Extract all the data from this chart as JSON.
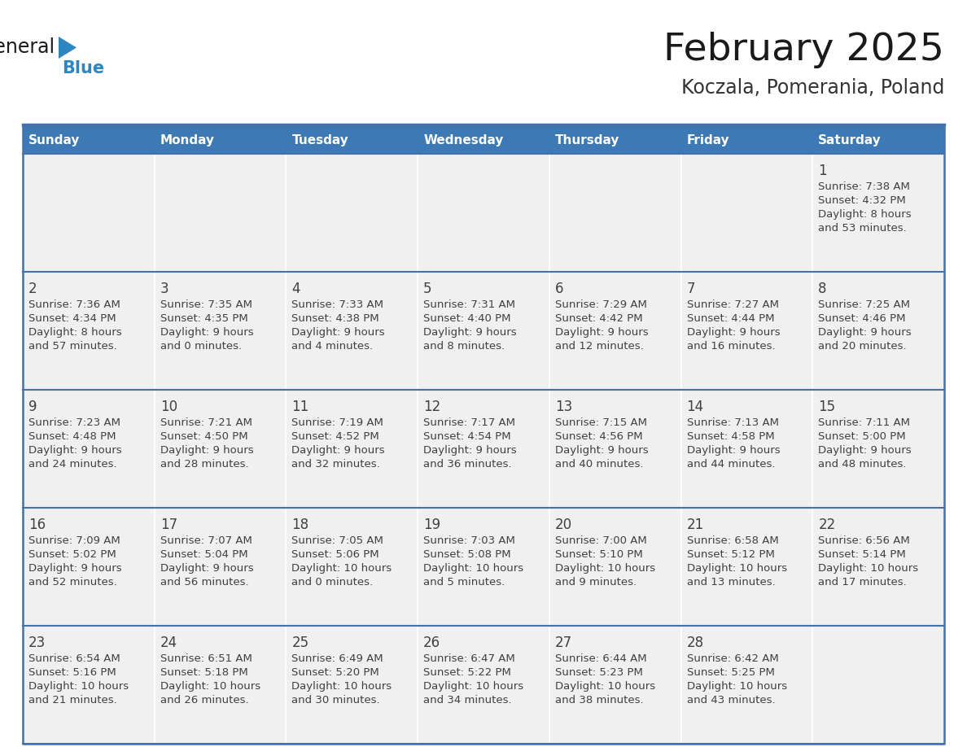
{
  "title": "February 2025",
  "subtitle": "Koczala, Pomerania, Poland",
  "header_bg": "#3D7AB5",
  "header_text": "#FFFFFF",
  "day_names": [
    "Sunday",
    "Monday",
    "Tuesday",
    "Wednesday",
    "Thursday",
    "Friday",
    "Saturday"
  ],
  "row_bg": "#F0F0F0",
  "border_color": "#4472A8",
  "text_color": "#404040",
  "title_color": "#1a1a1a",
  "subtitle_color": "#333333",
  "logo_color_general": "#1a1a1a",
  "logo_color_blue": "#2E86C1",
  "logo_triangle_color": "#2E86C1",
  "days": [
    {
      "day": 1,
      "col": 6,
      "row": 0,
      "sunrise": "7:38 AM",
      "sunset": "4:32 PM",
      "daylight": "8 hours",
      "daylight2": "and 53 minutes."
    },
    {
      "day": 2,
      "col": 0,
      "row": 1,
      "sunrise": "7:36 AM",
      "sunset": "4:34 PM",
      "daylight": "8 hours",
      "daylight2": "and 57 minutes."
    },
    {
      "day": 3,
      "col": 1,
      "row": 1,
      "sunrise": "7:35 AM",
      "sunset": "4:35 PM",
      "daylight": "9 hours",
      "daylight2": "and 0 minutes."
    },
    {
      "day": 4,
      "col": 2,
      "row": 1,
      "sunrise": "7:33 AM",
      "sunset": "4:38 PM",
      "daylight": "9 hours",
      "daylight2": "and 4 minutes."
    },
    {
      "day": 5,
      "col": 3,
      "row": 1,
      "sunrise": "7:31 AM",
      "sunset": "4:40 PM",
      "daylight": "9 hours",
      "daylight2": "and 8 minutes."
    },
    {
      "day": 6,
      "col": 4,
      "row": 1,
      "sunrise": "7:29 AM",
      "sunset": "4:42 PM",
      "daylight": "9 hours",
      "daylight2": "and 12 minutes."
    },
    {
      "day": 7,
      "col": 5,
      "row": 1,
      "sunrise": "7:27 AM",
      "sunset": "4:44 PM",
      "daylight": "9 hours",
      "daylight2": "and 16 minutes."
    },
    {
      "day": 8,
      "col": 6,
      "row": 1,
      "sunrise": "7:25 AM",
      "sunset": "4:46 PM",
      "daylight": "9 hours",
      "daylight2": "and 20 minutes."
    },
    {
      "day": 9,
      "col": 0,
      "row": 2,
      "sunrise": "7:23 AM",
      "sunset": "4:48 PM",
      "daylight": "9 hours",
      "daylight2": "and 24 minutes."
    },
    {
      "day": 10,
      "col": 1,
      "row": 2,
      "sunrise": "7:21 AM",
      "sunset": "4:50 PM",
      "daylight": "9 hours",
      "daylight2": "and 28 minutes."
    },
    {
      "day": 11,
      "col": 2,
      "row": 2,
      "sunrise": "7:19 AM",
      "sunset": "4:52 PM",
      "daylight": "9 hours",
      "daylight2": "and 32 minutes."
    },
    {
      "day": 12,
      "col": 3,
      "row": 2,
      "sunrise": "7:17 AM",
      "sunset": "4:54 PM",
      "daylight": "9 hours",
      "daylight2": "and 36 minutes."
    },
    {
      "day": 13,
      "col": 4,
      "row": 2,
      "sunrise": "7:15 AM",
      "sunset": "4:56 PM",
      "daylight": "9 hours",
      "daylight2": "and 40 minutes."
    },
    {
      "day": 14,
      "col": 5,
      "row": 2,
      "sunrise": "7:13 AM",
      "sunset": "4:58 PM",
      "daylight": "9 hours",
      "daylight2": "and 44 minutes."
    },
    {
      "day": 15,
      "col": 6,
      "row": 2,
      "sunrise": "7:11 AM",
      "sunset": "5:00 PM",
      "daylight": "9 hours",
      "daylight2": "and 48 minutes."
    },
    {
      "day": 16,
      "col": 0,
      "row": 3,
      "sunrise": "7:09 AM",
      "sunset": "5:02 PM",
      "daylight": "9 hours",
      "daylight2": "and 52 minutes."
    },
    {
      "day": 17,
      "col": 1,
      "row": 3,
      "sunrise": "7:07 AM",
      "sunset": "5:04 PM",
      "daylight": "9 hours",
      "daylight2": "and 56 minutes."
    },
    {
      "day": 18,
      "col": 2,
      "row": 3,
      "sunrise": "7:05 AM",
      "sunset": "5:06 PM",
      "daylight": "10 hours",
      "daylight2": "and 0 minutes."
    },
    {
      "day": 19,
      "col": 3,
      "row": 3,
      "sunrise": "7:03 AM",
      "sunset": "5:08 PM",
      "daylight": "10 hours",
      "daylight2": "and 5 minutes."
    },
    {
      "day": 20,
      "col": 4,
      "row": 3,
      "sunrise": "7:00 AM",
      "sunset": "5:10 PM",
      "daylight": "10 hours",
      "daylight2": "and 9 minutes."
    },
    {
      "day": 21,
      "col": 5,
      "row": 3,
      "sunrise": "6:58 AM",
      "sunset": "5:12 PM",
      "daylight": "10 hours",
      "daylight2": "and 13 minutes."
    },
    {
      "day": 22,
      "col": 6,
      "row": 3,
      "sunrise": "6:56 AM",
      "sunset": "5:14 PM",
      "daylight": "10 hours",
      "daylight2": "and 17 minutes."
    },
    {
      "day": 23,
      "col": 0,
      "row": 4,
      "sunrise": "6:54 AM",
      "sunset": "5:16 PM",
      "daylight": "10 hours",
      "daylight2": "and 21 minutes."
    },
    {
      "day": 24,
      "col": 1,
      "row": 4,
      "sunrise": "6:51 AM",
      "sunset": "5:18 PM",
      "daylight": "10 hours",
      "daylight2": "and 26 minutes."
    },
    {
      "day": 25,
      "col": 2,
      "row": 4,
      "sunrise": "6:49 AM",
      "sunset": "5:20 PM",
      "daylight": "10 hours",
      "daylight2": "and 30 minutes."
    },
    {
      "day": 26,
      "col": 3,
      "row": 4,
      "sunrise": "6:47 AM",
      "sunset": "5:22 PM",
      "daylight": "10 hours",
      "daylight2": "and 34 minutes."
    },
    {
      "day": 27,
      "col": 4,
      "row": 4,
      "sunrise": "6:44 AM",
      "sunset": "5:23 PM",
      "daylight": "10 hours",
      "daylight2": "and 38 minutes."
    },
    {
      "day": 28,
      "col": 5,
      "row": 4,
      "sunrise": "6:42 AM",
      "sunset": "5:25 PM",
      "daylight": "10 hours",
      "daylight2": "and 43 minutes."
    }
  ]
}
